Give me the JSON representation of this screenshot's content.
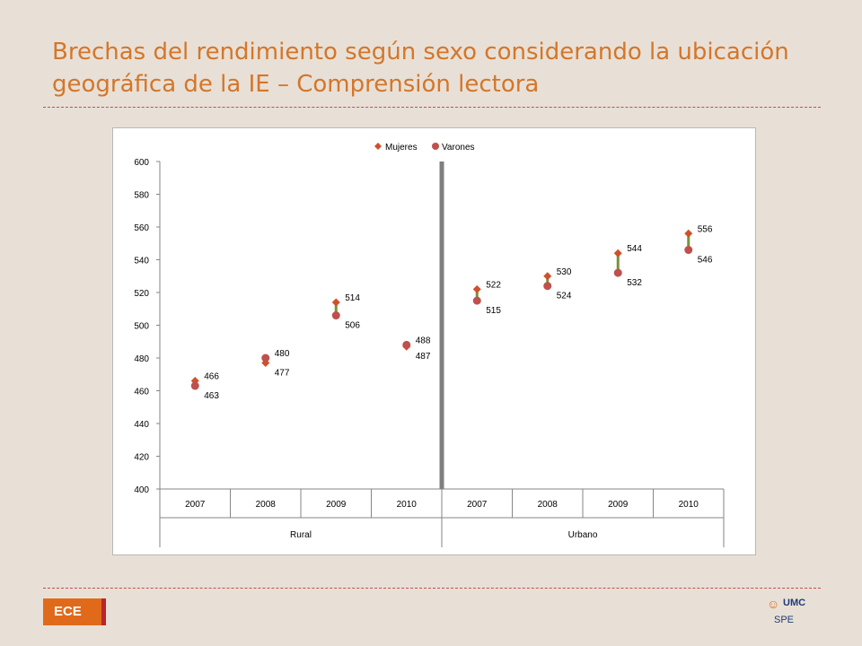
{
  "slide": {
    "title": "Brechas del rendimiento según sexo considerando la ubicación geográfica de la IE – Comprensión lectora",
    "badge": "ECE",
    "logo_text": "UMC",
    "logo_subtext": "SPE",
    "colors": {
      "background": "#e8e0d6",
      "title": "#d4762a",
      "rule": "#c0504d",
      "badge": "#e06a1a",
      "badge_accent": "#b8262a"
    }
  },
  "chart_data": {
    "type": "scatter",
    "title": "",
    "xlabel": "",
    "ylabel": "",
    "ylim": [
      400,
      600
    ],
    "yticks": [
      400,
      420,
      440,
      460,
      480,
      500,
      520,
      540,
      560,
      580,
      600
    ],
    "categories": [
      "2007",
      "2008",
      "2009",
      "2010",
      "2007",
      "2008",
      "2009",
      "2010"
    ],
    "groups": [
      {
        "label": "Rural",
        "span": 4
      },
      {
        "label": "Urbano",
        "span": 4
      }
    ],
    "legend": {
      "position": "top",
      "entries": [
        "Mujeres",
        "Varones"
      ]
    },
    "series": [
      {
        "name": "Mujeres",
        "marker": "diamond",
        "color": "#d0502a",
        "values": [
          466,
          477,
          514,
          487,
          522,
          530,
          544,
          556
        ]
      },
      {
        "name": "Varones",
        "marker": "circle",
        "color": "#c0504d",
        "values": [
          463,
          480,
          506,
          488,
          515,
          524,
          532,
          546
        ]
      }
    ],
    "gap_bar_color": "#77933c",
    "divider_color": "#7f7f7f",
    "grid": false
  }
}
